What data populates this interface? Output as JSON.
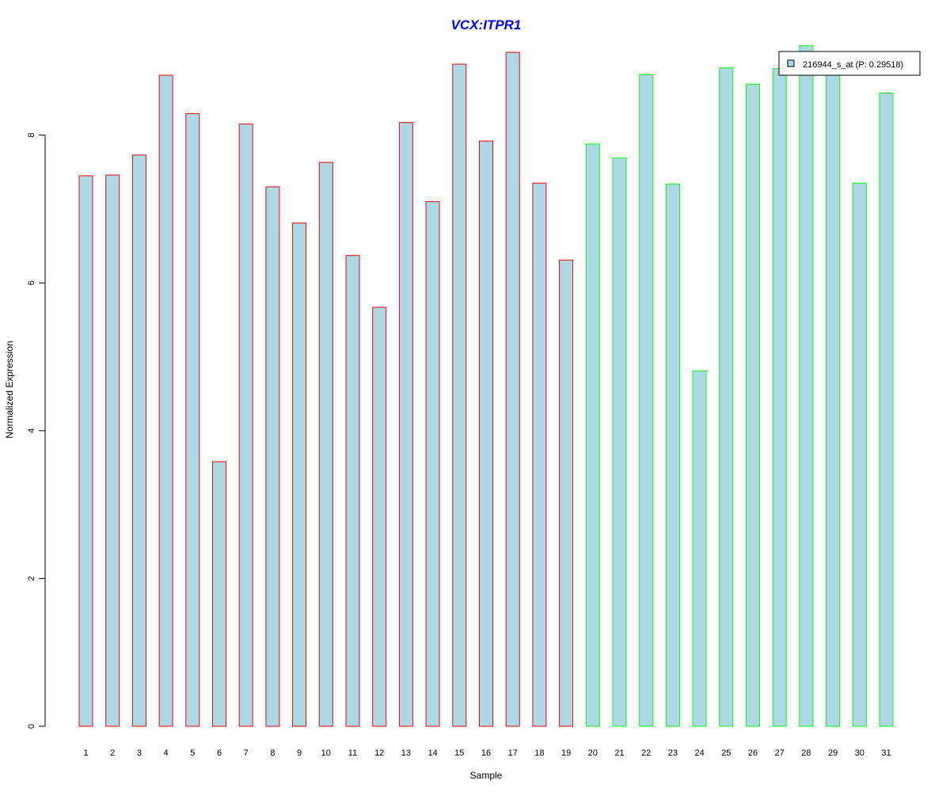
{
  "chart_data": {
    "type": "bar",
    "title": "VCX:ITPR1",
    "xlabel": "Sample",
    "ylabel": "Normalized Expression",
    "categories": [
      "1",
      "2",
      "3",
      "4",
      "5",
      "6",
      "7",
      "8",
      "9",
      "10",
      "11",
      "12",
      "13",
      "14",
      "15",
      "16",
      "17",
      "18",
      "19",
      "20",
      "21",
      "22",
      "23",
      "24",
      "25",
      "26",
      "27",
      "28",
      "29",
      "30",
      "31"
    ],
    "values": [
      7.45,
      7.46,
      7.73,
      8.81,
      8.29,
      3.58,
      8.15,
      7.3,
      6.81,
      7.63,
      6.37,
      5.67,
      8.17,
      7.1,
      8.96,
      7.92,
      9.12,
      7.35,
      6.31,
      7.88,
      7.69,
      8.82,
      7.34,
      4.81,
      8.91,
      8.69,
      8.9,
      9.21,
      8.99,
      7.35,
      8.57
    ],
    "series": [
      {
        "name": "216944_s_at (P: 0.29518)",
        "values": [
          7.45,
          7.46,
          7.73,
          8.81,
          8.29,
          3.58,
          8.15,
          7.3,
          6.81,
          7.63,
          6.37,
          5.67,
          8.17,
          7.1,
          8.96,
          7.92,
          9.12,
          7.35,
          6.31,
          7.88,
          7.69,
          8.82,
          7.34,
          4.81,
          8.91,
          8.69,
          8.9,
          9.21,
          8.99,
          7.35,
          8.57
        ]
      }
    ],
    "group_sizes": [
      19,
      12
    ],
    "yticks": [
      0,
      2,
      4,
      6,
      8
    ],
    "ylim": [
      0,
      9.21
    ],
    "grid": false,
    "legend_position": "top-right",
    "colors": {
      "bar_fill": "#add8e6",
      "group_1_border": "#ff0000",
      "group_2_border": "#00ff00",
      "title": "#0000ff",
      "axis": "#000000"
    }
  }
}
